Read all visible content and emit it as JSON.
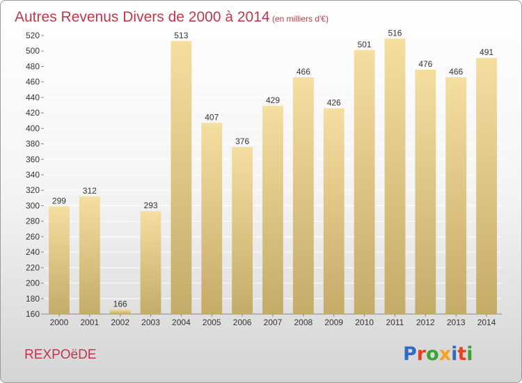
{
  "chart_data": {
    "type": "bar",
    "title": "Autres Revenus Divers de 2000 à 2014",
    "subtitle": "(en milliers d'€)",
    "categories": [
      "2000",
      "2001",
      "2002",
      "2003",
      "2004",
      "2005",
      "2006",
      "2007",
      "2008",
      "2009",
      "2010",
      "2011",
      "2012",
      "2013",
      "2014"
    ],
    "values": [
      299,
      312,
      166,
      293,
      513,
      407,
      376,
      429,
      466,
      426,
      501,
      516,
      476,
      466,
      491
    ],
    "ylim": [
      160,
      520
    ],
    "ytick_step": 20,
    "grid": true,
    "xlabel": "",
    "ylabel": ""
  },
  "footer": {
    "commune": "REXPOëDE",
    "brand": "Proxiti"
  },
  "colors": {
    "title": "#c0374a",
    "bar_light": "#f4dea0",
    "bar_dark": "#c5ab68",
    "grid": "#ffffff",
    "axis_text": "#333333",
    "commune": "#c0374a",
    "brand_letters": [
      "#2d6cc0",
      "#e8411e",
      "#3aa335",
      "#f4a321",
      "#2d6cc0",
      "#e8411e",
      "#3aa335"
    ]
  }
}
